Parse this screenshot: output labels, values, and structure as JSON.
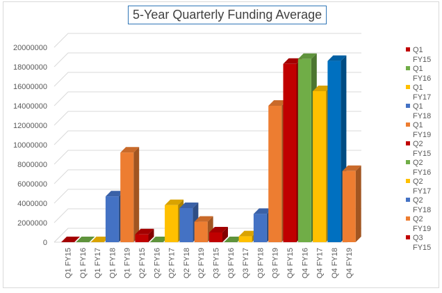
{
  "chart_data": {
    "type": "bar",
    "title": "5-Year Quarterly Funding Average",
    "ylim": [
      0,
      20000000
    ],
    "yticks": [
      0,
      2000000,
      4000000,
      6000000,
      8000000,
      10000000,
      12000000,
      14000000,
      16000000,
      18000000,
      20000000
    ],
    "grid": true,
    "legend_position": "right",
    "categories": [
      "Q1 FY15",
      "Q1 FY16",
      "Q1 FY17",
      "Q1 FY18",
      "Q1 FY19",
      "Q2 FY15",
      "Q2 FY16",
      "Q2 FY17",
      "Q2 FY18",
      "Q2 FY19",
      "Q3 FY15",
      "Q3 FY16",
      "Q3 FY17",
      "Q3 FY18",
      "Q3 FY19",
      "Q4 FY15",
      "Q4 FY16",
      "Q4 FY17",
      "Q4 FY18",
      "Q4 FY19"
    ],
    "values": [
      0,
      0,
      0,
      4700000,
      9200000,
      800000,
      0,
      3800000,
      3500000,
      2100000,
      1000000,
      0,
      600000,
      2900000,
      14000000,
      18300000,
      18800000,
      15500000,
      18600000,
      7300000
    ],
    "colors": [
      "#c00000",
      "#70ad47",
      "#ffc000",
      "#4472c4",
      "#ed7d31",
      "#c00000",
      "#70ad47",
      "#ffc000",
      "#4472c4",
      "#ed7d31",
      "#c00000",
      "#70ad47",
      "#ffc000",
      "#4472c4",
      "#ed7d31",
      "#c00000",
      "#70ad47",
      "#ffc000",
      "#0070c0",
      "#ed7d31"
    ],
    "legend": [
      {
        "line1": "Q1",
        "line2": "FY15",
        "color": "#c00000"
      },
      {
        "line1": "Q1",
        "line2": "FY16",
        "color": "#70ad47"
      },
      {
        "line1": "Q1",
        "line2": "FY17",
        "color": "#ffc000"
      },
      {
        "line1": "Q1",
        "line2": "FY18",
        "color": "#4472c4"
      },
      {
        "line1": "Q1",
        "line2": "FY19",
        "color": "#ed7d31"
      },
      {
        "line1": "Q2",
        "line2": "FY15",
        "color": "#c00000"
      },
      {
        "line1": "Q2",
        "line2": "FY16",
        "color": "#70ad47"
      },
      {
        "line1": "Q2",
        "line2": "FY17",
        "color": "#ffc000"
      },
      {
        "line1": "Q2",
        "line2": "FY18",
        "color": "#4472c4"
      },
      {
        "line1": "Q2",
        "line2": "FY19",
        "color": "#ed7d31"
      },
      {
        "line1": "Q3",
        "line2": "FY15",
        "color": "#c00000"
      }
    ]
  }
}
